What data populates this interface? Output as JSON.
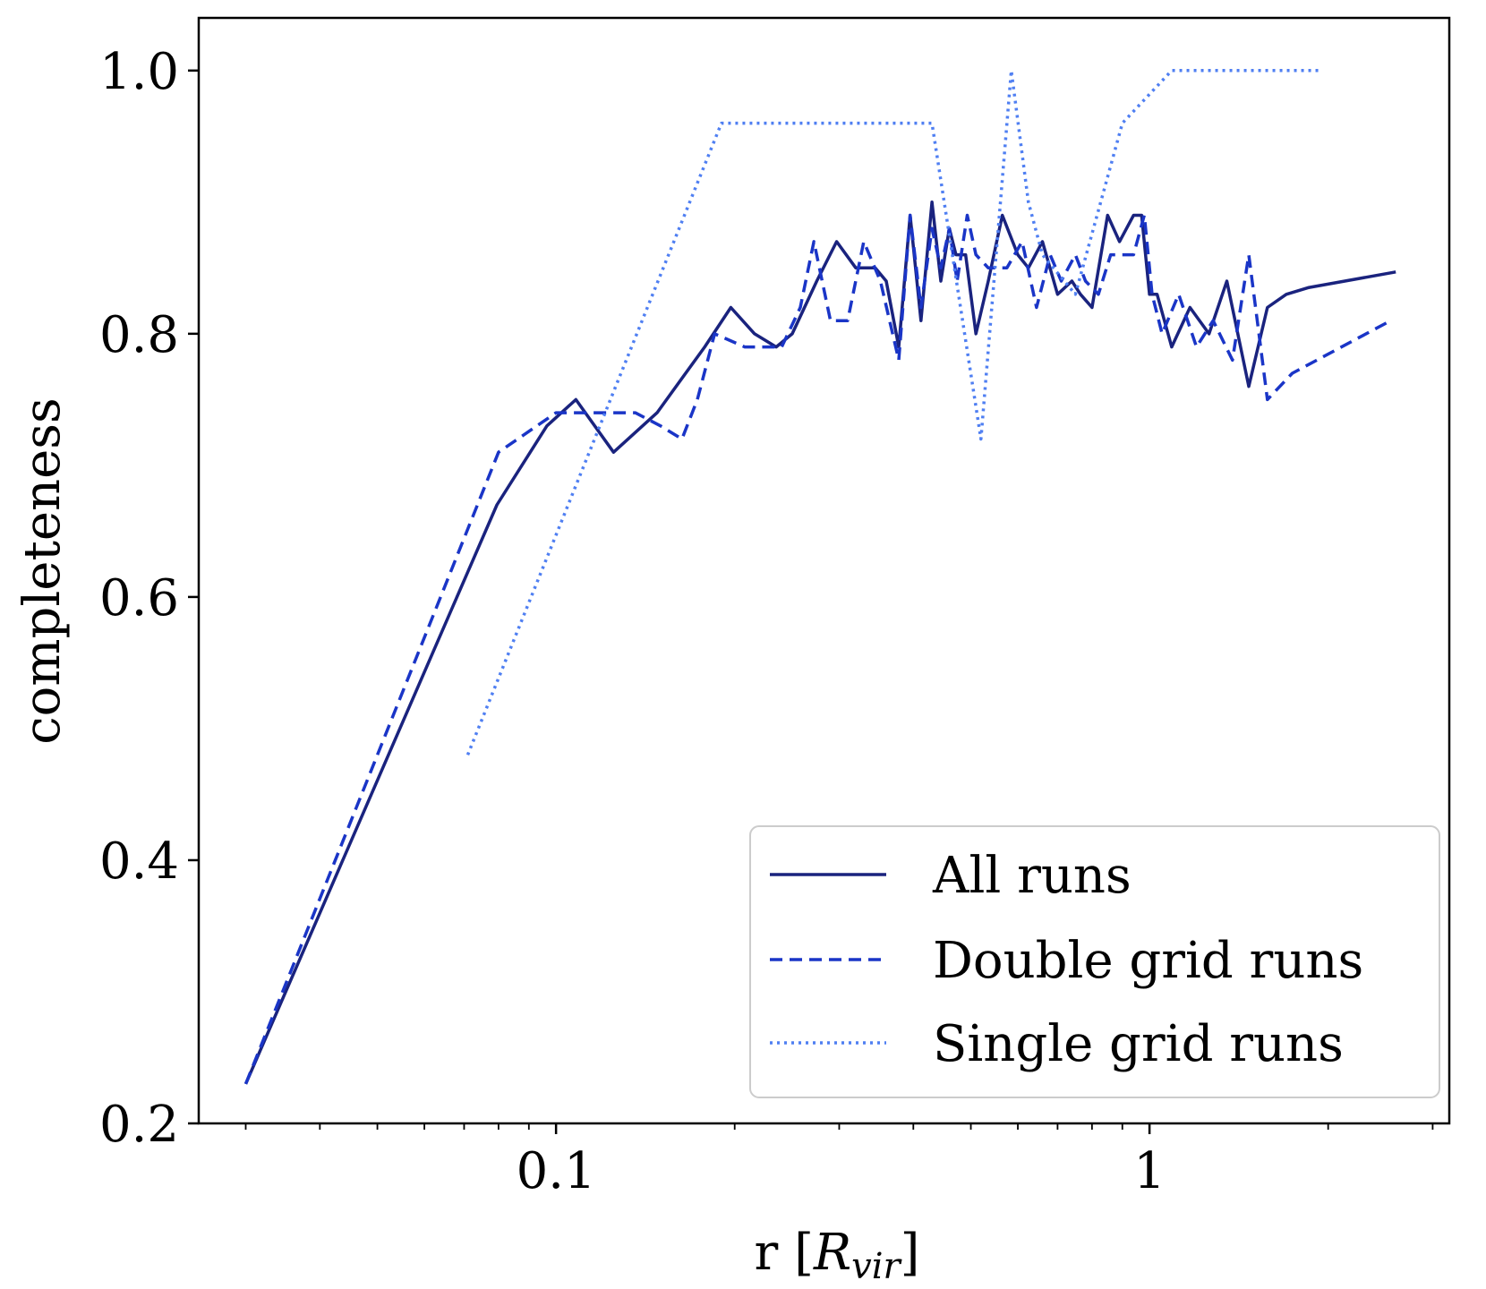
{
  "chart_data": {
    "type": "line",
    "xscale": "log",
    "xlabel": "r [R_vir]",
    "xlabel_main": "r [",
    "xlabel_sym": "R",
    "xlabel_sub": "vir",
    "xlabel_close": "]",
    "ylabel": "completeness",
    "xlim": [
      0.025,
      3.2
    ],
    "ylim": [
      0.2,
      1.04
    ],
    "xticks": [
      {
        "value": 0.1,
        "label": "0.1"
      },
      {
        "value": 1,
        "label": "1"
      }
    ],
    "yticks": [
      {
        "value": 0.2,
        "label": "0.2"
      },
      {
        "value": 0.4,
        "label": "0.4"
      },
      {
        "value": 0.6,
        "label": "0.6"
      },
      {
        "value": 0.8,
        "label": "0.8"
      },
      {
        "value": 1.0,
        "label": "1.0"
      }
    ],
    "legend_position": "lower-right",
    "series": [
      {
        "name": "All runs",
        "style": "solid",
        "color": "#1a237e",
        "x": [
          0.03,
          0.0795,
          0.0965,
          0.108,
          0.125,
          0.148,
          0.178,
          0.197,
          0.216,
          0.235,
          0.25,
          0.275,
          0.297,
          0.32,
          0.345,
          0.36,
          0.378,
          0.395,
          0.412,
          0.43,
          0.445,
          0.46,
          0.472,
          0.49,
          0.51,
          0.535,
          0.565,
          0.6,
          0.625,
          0.66,
          0.7,
          0.74,
          0.765,
          0.8,
          0.85,
          0.89,
          0.94,
          0.97,
          1.0,
          1.03,
          1.09,
          1.17,
          1.26,
          1.35,
          1.47,
          1.58,
          1.7,
          1.85,
          2.6
        ],
        "y": [
          0.23,
          0.67,
          0.73,
          0.75,
          0.71,
          0.74,
          0.79,
          0.82,
          0.8,
          0.79,
          0.8,
          0.84,
          0.87,
          0.85,
          0.85,
          0.84,
          0.79,
          0.89,
          0.81,
          0.9,
          0.84,
          0.88,
          0.86,
          0.86,
          0.8,
          0.84,
          0.89,
          0.86,
          0.85,
          0.87,
          0.83,
          0.84,
          0.83,
          0.82,
          0.89,
          0.87,
          0.89,
          0.89,
          0.83,
          0.83,
          0.79,
          0.82,
          0.8,
          0.84,
          0.76,
          0.82,
          0.83,
          0.835,
          0.847
        ]
      },
      {
        "name": "Double grid runs",
        "style": "dashed",
        "color": "#1a35c7",
        "x": [
          0.03,
          0.08,
          0.1,
          0.115,
          0.136,
          0.15,
          0.163,
          0.173,
          0.185,
          0.208,
          0.24,
          0.258,
          0.272,
          0.29,
          0.31,
          0.33,
          0.352,
          0.378,
          0.395,
          0.412,
          0.43,
          0.445,
          0.46,
          0.474,
          0.493,
          0.51,
          0.535,
          0.575,
          0.61,
          0.645,
          0.68,
          0.71,
          0.75,
          0.78,
          0.82,
          0.86,
          0.89,
          0.94,
          0.98,
          1.01,
          1.05,
          1.12,
          1.2,
          1.28,
          1.38,
          1.47,
          1.58,
          1.74,
          2.55
        ],
        "y": [
          0.23,
          0.71,
          0.74,
          0.74,
          0.74,
          0.73,
          0.72,
          0.75,
          0.8,
          0.79,
          0.79,
          0.82,
          0.87,
          0.81,
          0.81,
          0.87,
          0.84,
          0.78,
          0.89,
          0.82,
          0.88,
          0.85,
          0.88,
          0.84,
          0.89,
          0.86,
          0.85,
          0.85,
          0.87,
          0.82,
          0.86,
          0.84,
          0.86,
          0.84,
          0.83,
          0.86,
          0.86,
          0.86,
          0.89,
          0.83,
          0.8,
          0.83,
          0.79,
          0.81,
          0.78,
          0.86,
          0.75,
          0.77,
          0.81
        ]
      },
      {
        "name": "Single grid runs",
        "style": "dotted",
        "color": "#4f7ff2",
        "x": [
          0.071,
          0.19,
          0.43,
          0.52,
          0.585,
          0.625,
          0.66,
          0.75,
          0.9,
          1.09,
          1.95
        ],
        "y": [
          0.48,
          0.96,
          0.96,
          0.72,
          1.0,
          0.9,
          0.86,
          0.83,
          0.96,
          1.0,
          1.0
        ]
      }
    ]
  }
}
